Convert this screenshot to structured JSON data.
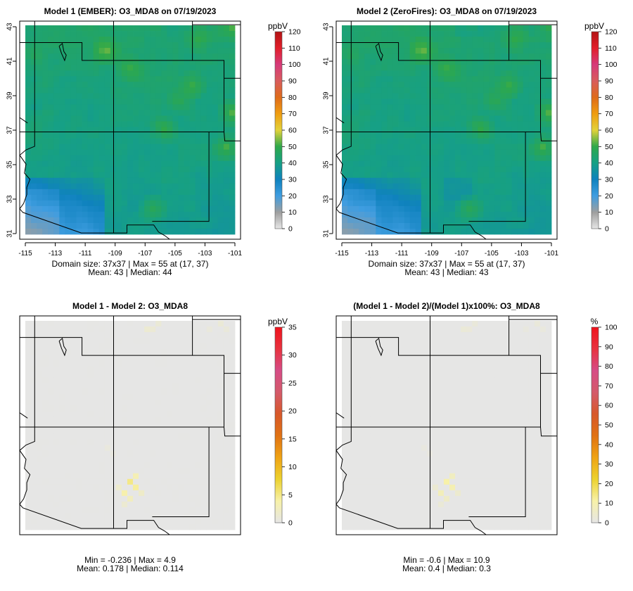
{
  "chart_data": [
    {
      "type": "heatmap",
      "title": "Model 1 (EMBER): O3_MDA8 on 07/19/2023",
      "colorbar_title": "ppbV",
      "colorbar_ticks": [
        0,
        10,
        20,
        30,
        40,
        50,
        60,
        70,
        80,
        90,
        100,
        110,
        120
      ],
      "zlim": [
        0,
        120
      ],
      "palette": "concentration",
      "xlim": [
        -115,
        -101
      ],
      "ylim": [
        31,
        43
      ],
      "xticks": [
        "-115",
        "-113",
        "-111",
        "-109",
        "-107",
        "-105",
        "-103",
        "-101"
      ],
      "yticks": [
        "31",
        "33",
        "35",
        "37",
        "39",
        "41",
        "43"
      ],
      "grid_size": [
        37,
        37
      ],
      "stats": {
        "min": null,
        "max": 55,
        "max_at": "(17, 37)",
        "mean": 43,
        "median": 44
      },
      "stats_line1": "Domain size: 37x37 | Max = 55 at (17, 37)",
      "stats_line2": "Mean: 43 |  Median: 44",
      "show_axes": true,
      "field": "ozone_fire"
    },
    {
      "type": "heatmap",
      "title": "Model 2 (ZeroFires): O3_MDA8 on 07/19/2023",
      "colorbar_title": "ppbV",
      "colorbar_ticks": [
        0,
        10,
        20,
        30,
        40,
        50,
        60,
        70,
        80,
        90,
        100,
        110,
        120
      ],
      "zlim": [
        0,
        120
      ],
      "palette": "concentration",
      "xlim": [
        -115,
        -101
      ],
      "ylim": [
        31,
        43
      ],
      "xticks": [
        "-115",
        "-113",
        "-111",
        "-109",
        "-107",
        "-105",
        "-103",
        "-101"
      ],
      "yticks": [
        "31",
        "33",
        "35",
        "37",
        "39",
        "41",
        "43"
      ],
      "grid_size": [
        37,
        37
      ],
      "stats": {
        "min": null,
        "max": 55,
        "max_at": "(17, 37)",
        "mean": 43,
        "median": 43
      },
      "stats_line1": "Domain size: 37x37 | Max = 55 at (17, 37)",
      "stats_line2": "Mean: 43 |  Median: 43",
      "show_axes": true,
      "field": "ozone_nofire"
    },
    {
      "type": "heatmap",
      "title": "Model 1 - Model 2: O3_MDA8",
      "colorbar_title": "ppbV",
      "colorbar_ticks": [
        0,
        5,
        10,
        15,
        20,
        25,
        30,
        35
      ],
      "zlim": [
        0,
        35
      ],
      "palette": "difference",
      "xlim": [
        -115,
        -101
      ],
      "ylim": [
        31,
        43
      ],
      "stats": {
        "min": -0.236,
        "max": 4.9,
        "mean": 0.178,
        "median": 0.114
      },
      "stats_line1": "Min = -0.236 | Max = 4.9",
      "stats_line2": "Mean: 0.178 |  Median: 0.114",
      "show_axes": false,
      "field": "abs_diff"
    },
    {
      "type": "heatmap",
      "title": "(Model 1 - Model 2)/(Model 1)x100%: O3_MDA8",
      "colorbar_title": "%",
      "colorbar_ticks": [
        0,
        10,
        20,
        30,
        40,
        50,
        60,
        70,
        80,
        90,
        100
      ],
      "zlim": [
        0,
        100
      ],
      "palette": "difference",
      "xlim": [
        -115,
        -101
      ],
      "ylim": [
        31,
        43
      ],
      "stats": {
        "min": -0.6,
        "max": 10.9,
        "mean": 0.4,
        "median": 0.3
      },
      "stats_line1": "Min = -0.6 | Max = 10.9",
      "stats_line2": "Mean: 0.4 |  Median: 0.3",
      "show_axes": false,
      "field": "pct_diff"
    }
  ],
  "colors": {
    "concentration_stops": [
      "#e6e6e6",
      "#9e9e9e",
      "#3f9de0",
      "#0f82be",
      "#16a085",
      "#2ea84a",
      "#e2d23a",
      "#ef9d11",
      "#de6b1a",
      "#d85c5c",
      "#d63a7a",
      "#e21e2a",
      "#b31313"
    ],
    "difference_stops": [
      "#e6e6e6",
      "#f7f1a8",
      "#ecd22f",
      "#efa314",
      "#e07213",
      "#d7582a",
      "#d45a6a",
      "#d64c86",
      "#e8323f",
      "#f0121c"
    ],
    "background": "#e6e6e6",
    "boundary": "#000000"
  }
}
